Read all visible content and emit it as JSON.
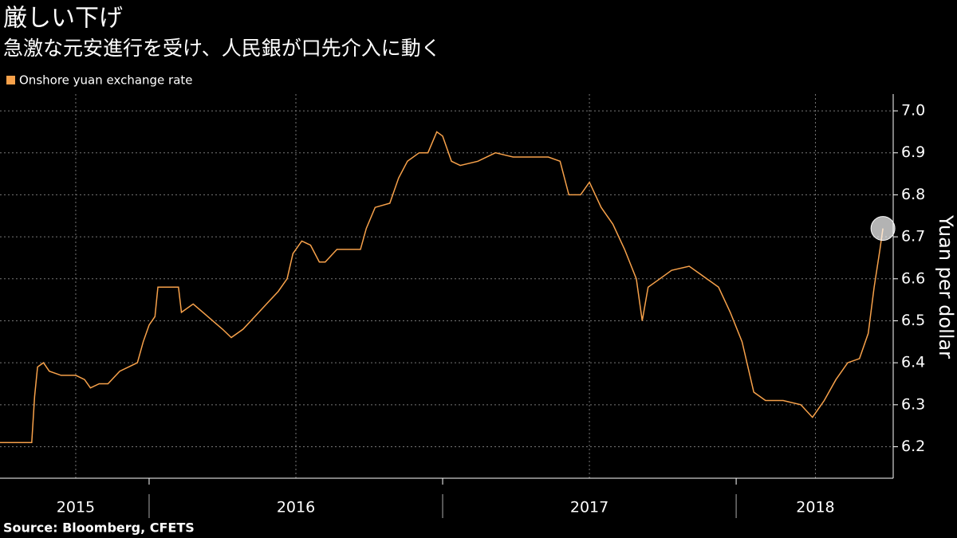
{
  "chart_data": {
    "type": "line",
    "title": "厳しい下げ",
    "subtitle": "急激な元安進行を受け、人民銀が口先介入に動く",
    "source": "Source: Bloomberg, CFETS",
    "y_label": "Yuan per dollar",
    "x": [
      2015.49,
      2015.6,
      2015.61,
      2015.62,
      2015.64,
      2015.66,
      2015.7,
      2015.75,
      2015.78,
      2015.8,
      2015.83,
      2015.86,
      2015.9,
      2015.93,
      2015.96,
      2015.98,
      2016.0,
      2016.02,
      2016.03,
      2016.05,
      2016.1,
      2016.11,
      2016.15,
      2016.2,
      2016.25,
      2016.28,
      2016.32,
      2016.36,
      2016.4,
      2016.44,
      2016.47,
      2016.49,
      2016.52,
      2016.55,
      2016.58,
      2016.6,
      2016.64,
      2016.68,
      2016.72,
      2016.74,
      2016.77,
      2016.82,
      2016.85,
      2016.88,
      2016.92,
      2016.95,
      2016.98,
      2017.0,
      2017.03,
      2017.06,
      2017.12,
      2017.18,
      2017.24,
      2017.3,
      2017.36,
      2017.4,
      2017.43,
      2017.47,
      2017.5,
      2017.54,
      2017.58,
      2017.62,
      2017.66,
      2017.68,
      2017.7,
      2017.74,
      2017.78,
      2017.84,
      2017.88,
      2017.94,
      2017.98,
      2018.02,
      2018.06,
      2018.1,
      2018.16,
      2018.22,
      2018.26,
      2018.3,
      2018.34,
      2018.38,
      2018.42,
      2018.45,
      2018.47,
      2018.49,
      2018.5
    ],
    "series": [
      {
        "name": "Onshore yuan exchange rate",
        "color": "#f7a14a",
        "values": [
          6.21,
          6.21,
          6.32,
          6.39,
          6.4,
          6.38,
          6.37,
          6.37,
          6.36,
          6.34,
          6.35,
          6.35,
          6.38,
          6.39,
          6.4,
          6.45,
          6.49,
          6.51,
          6.58,
          6.58,
          6.58,
          6.52,
          6.54,
          6.51,
          6.48,
          6.46,
          6.48,
          6.51,
          6.54,
          6.57,
          6.6,
          6.66,
          6.69,
          6.68,
          6.64,
          6.64,
          6.67,
          6.67,
          6.67,
          6.72,
          6.77,
          6.78,
          6.84,
          6.88,
          6.9,
          6.9,
          6.95,
          6.94,
          6.88,
          6.87,
          6.88,
          6.9,
          6.89,
          6.89,
          6.89,
          6.88,
          6.8,
          6.8,
          6.83,
          6.77,
          6.73,
          6.67,
          6.6,
          6.5,
          6.58,
          6.6,
          6.62,
          6.63,
          6.61,
          6.58,
          6.52,
          6.45,
          6.33,
          6.31,
          6.31,
          6.3,
          6.27,
          6.31,
          6.36,
          6.4,
          6.41,
          6.47,
          6.58,
          6.67,
          6.72
        ]
      }
    ],
    "xlim": [
      2015.492,
      2018.535
    ],
    "xticks": [
      {
        "value": 2015.75,
        "label": "2015"
      },
      {
        "value": 2016.5,
        "label": "2016"
      },
      {
        "value": 2017.5,
        "label": "2017"
      },
      {
        "value": 2018.27,
        "label": "2018"
      }
    ],
    "year_starts": [
      2016,
      2017,
      2018
    ],
    "ylim": [
      6.125,
      7.04
    ],
    "yticks": [
      6.2,
      6.3,
      6.4,
      6.5,
      6.6,
      6.7,
      6.8,
      6.9,
      {
        "value": 7,
        "label": "7.0"
      }
    ],
    "grid": true
  }
}
